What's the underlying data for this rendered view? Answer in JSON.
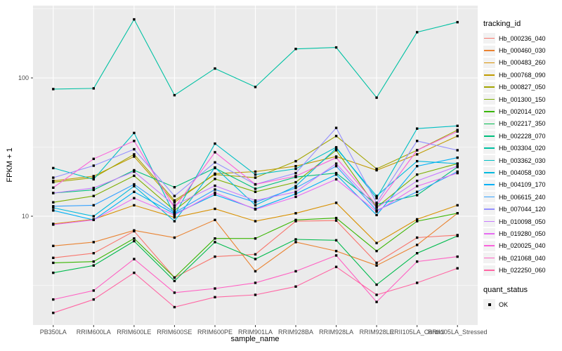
{
  "chart_data": {
    "type": "line",
    "title": "",
    "xlabel": "sample_name",
    "ylabel": "FPKM + 1",
    "y_scale": "log10",
    "ylim": [
      1.6,
      333
    ],
    "grid": true,
    "legend_position": "right",
    "y_ticks": [
      {
        "label": "100",
        "value": 100
      },
      {
        "label": "10",
        "value": 10
      }
    ],
    "y_minor": [
      3.162,
      31.62,
      316.2
    ],
    "categories": [
      "PB350LA",
      "RRIM600LA",
      "RRIM600LE",
      "RRIM600SE",
      "RRIM600PE",
      "RRIM901LA",
      "RRIM928BA",
      "RRIM928LA",
      "RRIM928LE",
      "RRII105LA_Control",
      "RRII105LA_Stressed"
    ],
    "series": [
      {
        "name": "Hb_000236_040",
        "color": "#F8766D",
        "values": [
          5.0,
          5.4,
          7.8,
          3.6,
          5.1,
          5.3,
          9.2,
          9.3,
          4.6,
          7.0,
          7.3
        ]
      },
      {
        "name": "Hb_000460_030",
        "color": "#EA8331",
        "values": [
          6.1,
          6.5,
          7.9,
          7.0,
          9.4,
          4.0,
          6.5,
          5.6,
          4.4,
          6.2,
          10.5
        ]
      },
      {
        "name": "Hb_000483_260",
        "color": "#D89000",
        "values": [
          8.8,
          9.5,
          12.0,
          9.8,
          11.3,
          9.2,
          10.5,
          12.5,
          6.4,
          9.5,
          12.0
        ]
      },
      {
        "name": "Hb_000768_090",
        "color": "#C09B00",
        "values": [
          18.0,
          19.5,
          27.0,
          12.6,
          20.3,
          21.0,
          23.0,
          27.0,
          21.5,
          28.0,
          38.0
        ]
      },
      {
        "name": "Hb_000827_050",
        "color": "#A3A500",
        "values": [
          17.6,
          19.0,
          28.0,
          13.0,
          20.0,
          19.0,
          25.0,
          38.0,
          22.0,
          30.0,
          42.0
        ]
      },
      {
        "name": "Hb_001300_150",
        "color": "#7CAE00",
        "values": [
          12.6,
          14.0,
          19.6,
          11.0,
          18.6,
          15.0,
          17.6,
          30.0,
          11.6,
          20.0,
          24.0
        ]
      },
      {
        "name": "Hb_002014_020",
        "color": "#39B600",
        "values": [
          4.6,
          4.7,
          6.9,
          3.6,
          6.9,
          6.9,
          9.4,
          9.7,
          5.6,
          9.2,
          10.5
        ]
      },
      {
        "name": "Hb_002217_350",
        "color": "#00BB4E",
        "values": [
          3.9,
          4.4,
          6.6,
          3.4,
          6.5,
          4.9,
          6.8,
          6.7,
          3.2,
          5.4,
          7.2
        ]
      },
      {
        "name": "Hb_002228_070",
        "color": "#00BF7D",
        "values": [
          14.7,
          15.5,
          21.5,
          16.2,
          22.3,
          15.8,
          19.2,
          20.5,
          12.2,
          14.2,
          22.7
        ]
      },
      {
        "name": "Hb_003304_020",
        "color": "#00C1A3",
        "values": [
          83,
          84,
          265,
          75,
          117,
          86,
          162,
          166,
          72,
          214,
          253
        ]
      },
      {
        "name": "Hb_003362_030",
        "color": "#00BFC4",
        "values": [
          22.3,
          18.5,
          40.0,
          10.2,
          33.5,
          20.0,
          22.0,
          31.5,
          13.5,
          43.0,
          45.0
        ]
      },
      {
        "name": "Hb_004058_030",
        "color": "#00BADE",
        "values": [
          11.5,
          10.0,
          16.5,
          9.2,
          22.5,
          12.0,
          16.5,
          31.0,
          14.0,
          25.0,
          24.0
        ]
      },
      {
        "name": "Hb_004109_170",
        "color": "#00B0F6",
        "values": [
          11.0,
          9.4,
          15.0,
          10.4,
          14.3,
          11.3,
          14.5,
          20.0,
          10.2,
          23.0,
          26.5
        ]
      },
      {
        "name": "Hb_006615_240",
        "color": "#35A2FF",
        "values": [
          11.8,
          12.0,
          17.0,
          10.6,
          15.6,
          12.6,
          16.0,
          23.0,
          11.0,
          15.0,
          21.0
        ]
      },
      {
        "name": "Hb_007044_120",
        "color": "#9590FF",
        "values": [
          19.0,
          23.2,
          30.5,
          14.0,
          24.5,
          17.0,
          20.5,
          43.5,
          12.5,
          35.0,
          30.0
        ]
      },
      {
        "name": "Hb_010098_050",
        "color": "#C77CFF",
        "values": [
          14.7,
          16.0,
          21.0,
          12.0,
          16.6,
          13.0,
          15.0,
          24.0,
          11.5,
          18.0,
          23.0
        ]
      },
      {
        "name": "Hb_019280_050",
        "color": "#E76BF3",
        "values": [
          8.7,
          9.4,
          13.5,
          10.2,
          14.8,
          11.2,
          13.8,
          18.5,
          10.8,
          16.5,
          20.5
        ]
      },
      {
        "name": "Hb_020025_040",
        "color": "#FA62DB",
        "values": [
          16.1,
          26.0,
          35.0,
          11.5,
          29.0,
          17.0,
          19.5,
          26.5,
          12.0,
          30.0,
          41.0
        ]
      },
      {
        "name": "Hb_021068_040",
        "color": "#FF61C3",
        "values": [
          2.5,
          2.9,
          4.9,
          2.8,
          3.0,
          3.3,
          4.0,
          5.2,
          2.4,
          4.7,
          5.1
        ]
      },
      {
        "name": "Hb_022250_060",
        "color": "#FF67A4",
        "values": [
          2.0,
          2.5,
          3.9,
          2.2,
          2.6,
          2.7,
          3.1,
          4.3,
          2.7,
          3.3,
          4.2
        ]
      }
    ],
    "legend": {
      "color_title": "tracking_id",
      "shape_title": "quant_status",
      "shape_entries": [
        {
          "label": "OK"
        }
      ]
    },
    "colors": {
      "panel_bg": "#EBEBEB",
      "grid": "#FFFFFF",
      "point": "#000000",
      "tick_text": "#4D4D4D",
      "axis_text": "#000000",
      "legend_key_bg": "#F2F2F2",
      "page_bg": "#FFFFFF"
    }
  }
}
